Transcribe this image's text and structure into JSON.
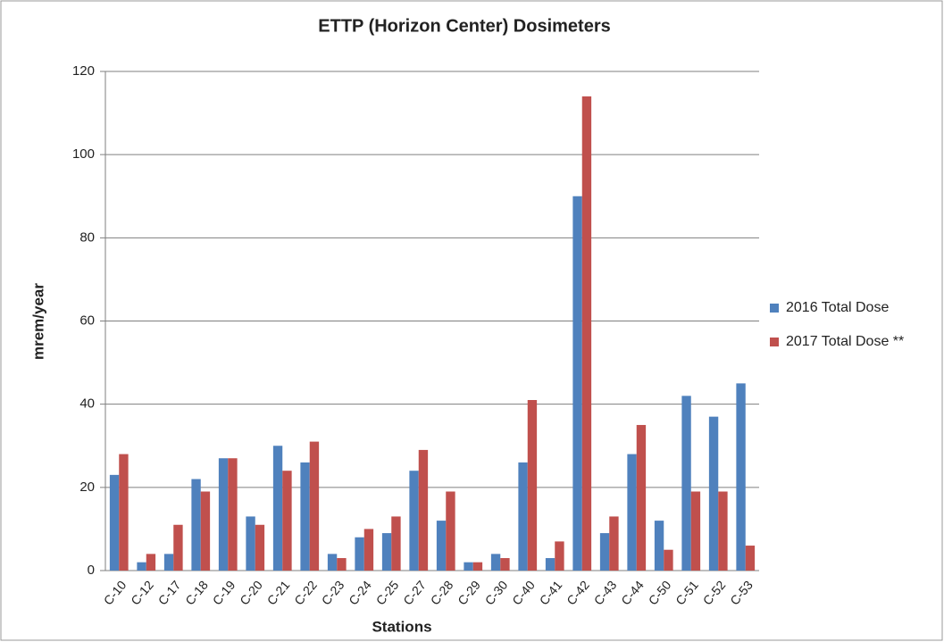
{
  "chart_data": {
    "type": "bar",
    "title": "ETTP (Horizon Center) Dosimeters",
    "y_label": "mrem/year",
    "x_label": "Stations",
    "categories": [
      "C-10",
      "C-12",
      "C-17",
      "C-18",
      "C-19",
      "C-20",
      "C-21",
      "C-22",
      "C-23",
      "C-24",
      "C-25",
      "C-27",
      "C-28",
      "C-29",
      "C-30",
      "C-40",
      "C-41",
      "C-42",
      "C-43",
      "C-44",
      "C-50",
      "C-51",
      "C-52",
      "C-53"
    ],
    "series": [
      {
        "name": "2016 Total Dose",
        "color": "#4f81bd",
        "values": [
          23,
          2,
          4,
          22,
          27,
          13,
          30,
          26,
          4,
          8,
          9,
          24,
          12,
          2,
          4,
          26,
          3,
          90,
          9,
          28,
          12,
          42,
          37,
          45
        ]
      },
      {
        "name": "2017 Total Dose **",
        "color": "#c0504d",
        "values": [
          28,
          4,
          11,
          19,
          27,
          11,
          24,
          31,
          3,
          10,
          13,
          29,
          19,
          2,
          3,
          41,
          7,
          114,
          13,
          35,
          5,
          19,
          19,
          6
        ]
      }
    ],
    "ylim": [
      0,
      120
    ],
    "yticks": [
      0,
      20,
      40,
      60,
      80,
      100,
      120
    ],
    "grid": true,
    "legend": "right"
  }
}
